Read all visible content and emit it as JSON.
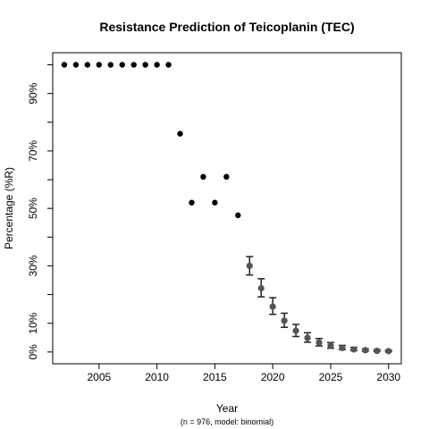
{
  "chart_data": {
    "type": "scatter",
    "title": "Resistance Prediction of Teicoplanin (TEC)",
    "xlabel": "Year",
    "ylabel": "Percentage (%R)",
    "caption": "(n = 976, model: binomial)",
    "xlim": [
      2001.0,
      2031.1
    ],
    "ylim": [
      -4.1,
      104.2
    ],
    "x_ticks": [
      2005,
      2010,
      2015,
      2020,
      2025,
      2030
    ],
    "y_ticks": [
      0,
      10,
      20,
      30,
      40,
      50,
      60,
      70,
      80,
      90,
      100
    ],
    "y_tick_labels": [
      {
        "value": 0,
        "label": "0%"
      },
      {
        "value": 10,
        "label": "10%"
      },
      {
        "value": 30,
        "label": "30%"
      },
      {
        "value": 50,
        "label": "50%"
      },
      {
        "value": 70,
        "label": "70%"
      },
      {
        "value": 90,
        "label": "90%"
      }
    ],
    "grid": false,
    "series": [
      {
        "kind": "observed",
        "color": "#000000",
        "x": [
          2002,
          2003,
          2004,
          2005,
          2006,
          2007,
          2008,
          2009,
          2010,
          2011,
          2012,
          2013,
          2014,
          2015,
          2016,
          2017
        ],
        "y": [
          100,
          100,
          100,
          100,
          100,
          100,
          100,
          100,
          100,
          100,
          76,
          52,
          61,
          52,
          61,
          47.6
        ]
      },
      {
        "kind": "predicted",
        "color": "#555555",
        "x": [
          2018,
          2019,
          2020,
          2021,
          2022,
          2023,
          2024,
          2025,
          2026,
          2027,
          2028,
          2029,
          2030
        ],
        "y": [
          30.0,
          22.2,
          15.8,
          10.9,
          7.4,
          4.9,
          3.3,
          2.2,
          1.4,
          0.9,
          0.6,
          0.4,
          0.3
        ],
        "lower": [
          26.8,
          19.2,
          13.1,
          8.6,
          5.4,
          3.4,
          2.1,
          1.3,
          0.8,
          0.5,
          0.3,
          0.2,
          0.1
        ],
        "upper": [
          33.2,
          25.5,
          18.9,
          13.5,
          9.6,
          6.7,
          4.7,
          3.3,
          2.3,
          1.6,
          1.1,
          0.8,
          0.6
        ]
      }
    ]
  }
}
